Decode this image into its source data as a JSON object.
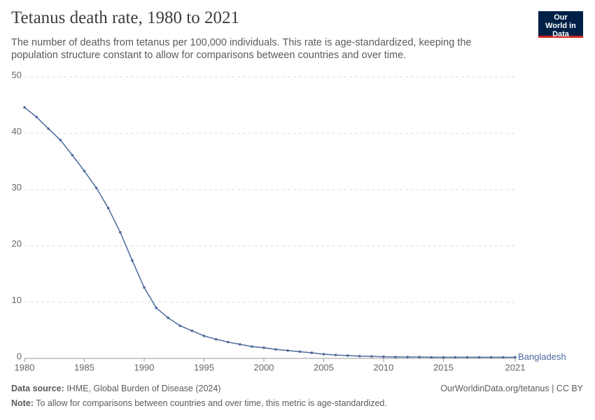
{
  "chart_data": {
    "type": "line",
    "title": "Tetanus death rate, 1980 to 2021",
    "subtitle": "The number of deaths from tetanus per 100,000 individuals. This rate is age-standardized, keeping the population structure constant to allow for comparisons between countries and over time.",
    "logo": "Our World in Data",
    "source_label": "Data source:",
    "source": "IHME, Global Burden of Disease (2024)",
    "note_label": "Note:",
    "note": "To allow for comparisons between countries and over time, this metric is age-standardized.",
    "url": "OurWorldinData.org/tetanus | CC BY",
    "x": [
      1980,
      1981,
      1982,
      1983,
      1984,
      1985,
      1986,
      1987,
      1988,
      1989,
      1990,
      1991,
      1992,
      1993,
      1994,
      1995,
      1996,
      1997,
      1998,
      1999,
      2000,
      2001,
      2002,
      2003,
      2004,
      2005,
      2006,
      2007,
      2008,
      2009,
      2010,
      2011,
      2012,
      2013,
      2014,
      2015,
      2016,
      2017,
      2018,
      2019,
      2020,
      2021
    ],
    "series": [
      {
        "name": "Bangladesh",
        "color": "#4c6a9c",
        "values": [
          44.6,
          42.9,
          40.8,
          38.8,
          36.1,
          33.3,
          30.3,
          26.7,
          22.4,
          17.4,
          12.6,
          9.0,
          7.2,
          5.8,
          4.9,
          4.0,
          3.4,
          2.9,
          2.5,
          2.1,
          1.9,
          1.6,
          1.4,
          1.2,
          1.0,
          0.75,
          0.6,
          0.5,
          0.4,
          0.35,
          0.3,
          0.25,
          0.25,
          0.25,
          0.2,
          0.2,
          0.2,
          0.2,
          0.2,
          0.2,
          0.2,
          0.2
        ]
      }
    ],
    "xlim": [
      1980,
      2021
    ],
    "xticks": [
      1980,
      1985,
      1990,
      1995,
      2000,
      2005,
      2010,
      2015,
      2021
    ],
    "ylim": [
      0,
      50
    ],
    "yticks": [
      0,
      10,
      20,
      30,
      40,
      50
    ],
    "grid": true
  }
}
